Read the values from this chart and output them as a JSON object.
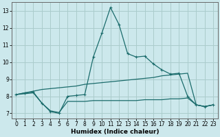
{
  "xlabel": "Humidex (Indice chaleur)",
  "background_color": "#cce8ec",
  "grid_color": "#aacccc",
  "line_color": "#1a6b6b",
  "xlim": [
    -0.5,
    23.5
  ],
  "ylim": [
    6.7,
    13.5
  ],
  "xticks": [
    0,
    1,
    2,
    3,
    4,
    5,
    6,
    7,
    8,
    9,
    10,
    11,
    12,
    13,
    14,
    15,
    16,
    17,
    18,
    19,
    20,
    21,
    22,
    23
  ],
  "yticks": [
    7,
    8,
    9,
    10,
    11,
    12,
    13
  ],
  "line1_x": [
    0,
    1,
    2,
    3,
    4,
    5,
    6,
    7,
    8,
    9,
    10,
    11,
    12,
    13,
    14,
    15,
    16,
    17,
    18,
    19,
    20,
    21,
    22,
    23
  ],
  "line1_y": [
    8.1,
    8.2,
    8.25,
    7.6,
    7.1,
    7.0,
    8.0,
    8.05,
    8.1,
    10.3,
    11.7,
    13.2,
    12.2,
    10.5,
    10.3,
    10.35,
    9.9,
    9.55,
    9.3,
    9.35,
    8.0,
    7.5,
    7.4,
    7.5
  ],
  "line2_x": [
    0,
    1,
    2,
    3,
    4,
    5,
    6,
    7,
    8,
    9,
    10,
    11,
    12,
    13,
    14,
    15,
    16,
    17,
    18,
    19,
    20,
    21,
    22,
    23
  ],
  "line2_y": [
    8.1,
    8.15,
    8.2,
    7.6,
    7.15,
    7.05,
    7.7,
    7.7,
    7.7,
    7.75,
    7.75,
    7.75,
    7.75,
    7.75,
    7.75,
    7.8,
    7.8,
    7.8,
    7.85,
    7.85,
    7.9,
    7.5,
    7.4,
    7.5
  ],
  "line3_x": [
    0,
    1,
    2,
    3,
    4,
    5,
    6,
    7,
    8,
    9,
    10,
    11,
    12,
    13,
    14,
    15,
    16,
    17,
    18,
    19,
    20,
    21,
    22,
    23
  ],
  "line3_y": [
    8.1,
    8.2,
    8.3,
    8.4,
    8.45,
    8.5,
    8.55,
    8.6,
    8.7,
    8.75,
    8.8,
    8.85,
    8.9,
    8.95,
    9.0,
    9.05,
    9.1,
    9.2,
    9.25,
    9.3,
    9.35,
    7.5,
    7.4,
    7.5
  ]
}
